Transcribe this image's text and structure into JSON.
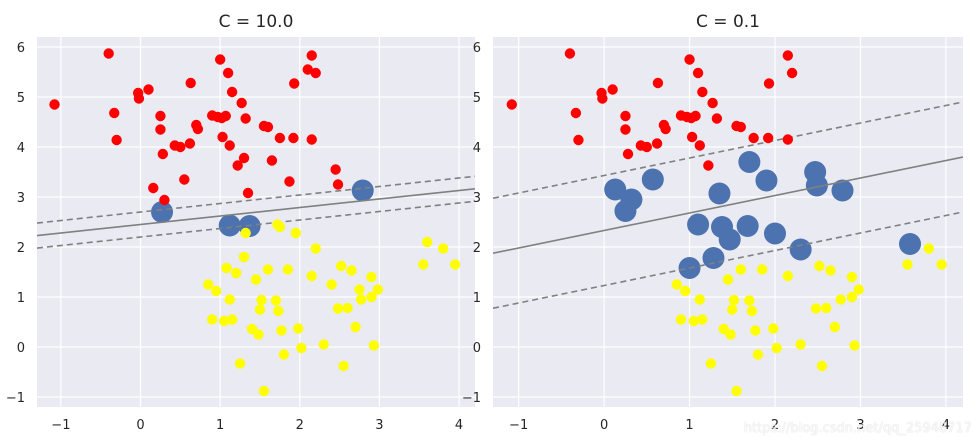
{
  "chart_data": [
    {
      "type": "scatter",
      "title": "C = 10.0",
      "xlim": [
        -1.3,
        4.2
      ],
      "ylim": [
        -1.2,
        6.2
      ],
      "xticks": [
        -1,
        0,
        1,
        2,
        3,
        4
      ],
      "yticks": [
        -1,
        0,
        1,
        2,
        3,
        4,
        5,
        6
      ],
      "grid": true,
      "colors": {
        "class_0": "#ff0000",
        "class_1": "#ffff00",
        "support_vectors": "#4c72b0",
        "boundary": "#808080",
        "background": "#eaeaf2"
      },
      "decision_line": {
        "slope": 0.17,
        "intercept": 2.45
      },
      "margin_offsets": [
        0.25,
        -0.25
      ],
      "series": [
        {
          "label": "class_0",
          "points": [
            [
              -1.08,
              4.85
            ],
            [
              -0.4,
              5.87
            ],
            [
              -0.33,
              4.68
            ],
            [
              -0.3,
              4.14
            ],
            [
              -0.03,
              5.08
            ],
            [
              -0.02,
              4.97
            ],
            [
              0.1,
              5.15
            ],
            [
              0.16,
              3.18
            ],
            [
              0.25,
              4.35
            ],
            [
              0.25,
              4.62
            ],
            [
              0.28,
              3.86
            ],
            [
              0.3,
              2.94
            ],
            [
              0.43,
              4.03
            ],
            [
              0.5,
              4.0
            ],
            [
              0.55,
              3.35
            ],
            [
              0.62,
              4.07
            ],
            [
              0.63,
              5.28
            ],
            [
              0.7,
              4.44
            ],
            [
              0.72,
              4.36
            ],
            [
              0.9,
              4.63
            ],
            [
              0.97,
              4.6
            ],
            [
              1.0,
              5.75
            ],
            [
              1.02,
              4.58
            ],
            [
              1.03,
              4.2
            ],
            [
              1.07,
              4.62
            ],
            [
              1.1,
              5.48
            ],
            [
              1.12,
              4.03
            ],
            [
              1.15,
              5.1
            ],
            [
              1.22,
              3.63
            ],
            [
              1.27,
              4.88
            ],
            [
              1.3,
              3.78
            ],
            [
              1.32,
              4.57
            ],
            [
              1.35,
              3.08
            ],
            [
              1.55,
              4.42
            ],
            [
              1.6,
              4.4
            ],
            [
              1.65,
              3.73
            ],
            [
              1.75,
              4.18
            ],
            [
              1.87,
              3.31
            ],
            [
              1.92,
              4.18
            ],
            [
              1.93,
              5.27
            ],
            [
              2.1,
              5.55
            ],
            [
              2.15,
              5.83
            ],
            [
              2.15,
              4.15
            ],
            [
              2.2,
              5.48
            ],
            [
              2.45,
              3.55
            ],
            [
              2.48,
              3.25
            ]
          ]
        },
        {
          "label": "class_1",
          "points": [
            [
              0.85,
              1.25
            ],
            [
              0.9,
              0.55
            ],
            [
              0.95,
              1.12
            ],
            [
              1.05,
              0.52
            ],
            [
              1.08,
              1.58
            ],
            [
              1.12,
              0.95
            ],
            [
              1.15,
              0.55
            ],
            [
              1.2,
              1.48
            ],
            [
              1.25,
              -0.33
            ],
            [
              1.3,
              1.8
            ],
            [
              1.32,
              2.28
            ],
            [
              1.4,
              0.36
            ],
            [
              1.45,
              1.35
            ],
            [
              1.48,
              0.25
            ],
            [
              1.5,
              0.75
            ],
            [
              1.52,
              0.94
            ],
            [
              1.55,
              -0.88
            ],
            [
              1.6,
              1.55
            ],
            [
              1.7,
              0.93
            ],
            [
              1.72,
              2.45
            ],
            [
              1.73,
              0.72
            ],
            [
              1.75,
              2.4
            ],
            [
              1.77,
              0.33
            ],
            [
              1.8,
              -0.15
            ],
            [
              1.85,
              1.55
            ],
            [
              1.95,
              2.28
            ],
            [
              1.98,
              0.37
            ],
            [
              2.02,
              -0.02
            ],
            [
              2.15,
              1.42
            ],
            [
              2.2,
              1.97
            ],
            [
              2.3,
              0.05
            ],
            [
              2.4,
              1.25
            ],
            [
              2.48,
              0.77
            ],
            [
              2.52,
              1.62
            ],
            [
              2.55,
              -0.38
            ],
            [
              2.6,
              0.78
            ],
            [
              2.65,
              1.53
            ],
            [
              2.7,
              0.4
            ],
            [
              2.75,
              1.15
            ],
            [
              2.77,
              0.95
            ],
            [
              2.9,
              1.4
            ],
            [
              2.9,
              1.0
            ],
            [
              2.93,
              0.03
            ],
            [
              2.98,
              1.15
            ],
            [
              3.55,
              1.65
            ],
            [
              3.6,
              2.1
            ],
            [
              3.8,
              1.97
            ],
            [
              3.95,
              1.65
            ]
          ]
        },
        {
          "label": "support_vectors",
          "points": [
            [
              0.27,
              2.7
            ],
            [
              1.12,
              2.43
            ],
            [
              1.37,
              2.42
            ],
            [
              2.79,
              3.13
            ]
          ]
        }
      ]
    },
    {
      "type": "scatter",
      "title": "C = 0.1",
      "xlim": [
        -1.3,
        4.2
      ],
      "ylim": [
        -1.2,
        6.2
      ],
      "xticks": [
        -1,
        0,
        1,
        2,
        3,
        4
      ],
      "yticks": [
        -1,
        0,
        1,
        2,
        3,
        4,
        5,
        6
      ],
      "grid": true,
      "colors": {
        "class_0": "#ff0000",
        "class_1": "#ffff00",
        "support_vectors": "#4c72b0",
        "boundary": "#808080",
        "background": "#eaeaf2"
      },
      "decision_line": {
        "slope": 0.35,
        "intercept": 2.33
      },
      "margin_offsets": [
        1.1,
        -1.1
      ],
      "series": [
        {
          "label": "class_0",
          "points": [
            [
              -1.08,
              4.85
            ],
            [
              -0.4,
              5.87
            ],
            [
              -0.33,
              4.68
            ],
            [
              -0.3,
              4.14
            ],
            [
              -0.03,
              5.08
            ],
            [
              -0.02,
              4.97
            ],
            [
              0.1,
              5.15
            ],
            [
              0.25,
              4.35
            ],
            [
              0.25,
              4.62
            ],
            [
              0.28,
              3.86
            ],
            [
              0.43,
              4.03
            ],
            [
              0.5,
              4.0
            ],
            [
              0.62,
              4.07
            ],
            [
              0.63,
              5.28
            ],
            [
              0.7,
              4.44
            ],
            [
              0.72,
              4.36
            ],
            [
              0.9,
              4.63
            ],
            [
              0.97,
              4.6
            ],
            [
              1.0,
              5.75
            ],
            [
              1.02,
              4.58
            ],
            [
              1.03,
              4.2
            ],
            [
              1.07,
              4.62
            ],
            [
              1.1,
              5.48
            ],
            [
              1.12,
              4.03
            ],
            [
              1.15,
              5.1
            ],
            [
              1.22,
              3.63
            ],
            [
              1.27,
              4.88
            ],
            [
              1.32,
              4.57
            ],
            [
              1.55,
              4.42
            ],
            [
              1.6,
              4.4
            ],
            [
              1.75,
              4.18
            ],
            [
              1.92,
              4.18
            ],
            [
              1.93,
              5.27
            ],
            [
              2.15,
              5.83
            ],
            [
              2.15,
              4.15
            ],
            [
              2.2,
              5.48
            ]
          ]
        },
        {
          "label": "class_1",
          "points": [
            [
              0.85,
              1.25
            ],
            [
              0.9,
              0.55
            ],
            [
              0.95,
              1.12
            ],
            [
              1.05,
              0.52
            ],
            [
              1.12,
              0.95
            ],
            [
              1.15,
              0.55
            ],
            [
              1.25,
              -0.33
            ],
            [
              1.4,
              0.36
            ],
            [
              1.45,
              1.35
            ],
            [
              1.48,
              0.25
            ],
            [
              1.5,
              0.75
            ],
            [
              1.52,
              0.94
            ],
            [
              1.55,
              -0.88
            ],
            [
              1.6,
              1.55
            ],
            [
              1.7,
              0.93
            ],
            [
              1.73,
              0.72
            ],
            [
              1.77,
              0.33
            ],
            [
              1.8,
              -0.15
            ],
            [
              1.85,
              1.55
            ],
            [
              1.98,
              0.37
            ],
            [
              2.02,
              -0.02
            ],
            [
              2.15,
              1.42
            ],
            [
              2.3,
              0.05
            ],
            [
              2.48,
              0.77
            ],
            [
              2.52,
              1.62
            ],
            [
              2.55,
              -0.38
            ],
            [
              2.6,
              0.78
            ],
            [
              2.65,
              1.53
            ],
            [
              2.7,
              0.4
            ],
            [
              2.77,
              0.95
            ],
            [
              2.9,
              1.4
            ],
            [
              2.9,
              1.0
            ],
            [
              2.93,
              0.03
            ],
            [
              2.98,
              1.15
            ],
            [
              3.55,
              1.65
            ],
            [
              3.8,
              1.97
            ],
            [
              3.95,
              1.65
            ]
          ]
        },
        {
          "label": "support_vectors",
          "points": [
            [
              0.13,
              3.15
            ],
            [
              0.25,
              2.72
            ],
            [
              0.32,
              2.95
            ],
            [
              0.57,
              3.35
            ],
            [
              1.0,
              1.58
            ],
            [
              1.1,
              2.45
            ],
            [
              1.28,
              1.78
            ],
            [
              1.35,
              3.07
            ],
            [
              1.38,
              2.4
            ],
            [
              1.47,
              2.15
            ],
            [
              1.68,
              2.42
            ],
            [
              1.7,
              3.7
            ],
            [
              1.9,
              3.33
            ],
            [
              2.0,
              2.27
            ],
            [
              2.3,
              1.95
            ],
            [
              2.47,
              3.5
            ],
            [
              2.49,
              3.23
            ],
            [
              2.79,
              3.13
            ],
            [
              3.58,
              2.06
            ]
          ]
        }
      ]
    }
  ],
  "watermark": "https://blog.csdn.net/qq_25948717"
}
